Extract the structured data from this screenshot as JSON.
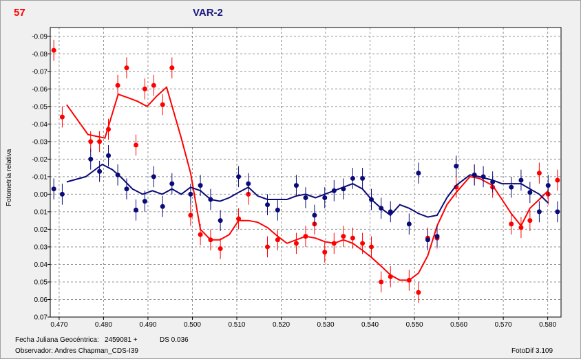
{
  "header": {
    "number": "57",
    "title": "VAR-2"
  },
  "footer": {
    "date_label": "Fecha Juliana Geocéntrica:",
    "date_value": "2459081 +",
    "ds": "DS 0.036",
    "observer": "Observador: Andres Chapman_CDS-I39",
    "software": "FotoDif 3.109"
  },
  "colors": {
    "red": "#ff0000",
    "blue": "#0a0a78",
    "grid": "#909090",
    "plot_bg": "#ffffff"
  },
  "chart_data": {
    "type": "scatter",
    "ylabel": "Fotometría relativa",
    "xlim": [
      0.468,
      0.583
    ],
    "ylim": [
      -0.095,
      0.07
    ],
    "y_inverted": true,
    "x_ticks": [
      "0.470",
      "0.480",
      "0.490",
      "0.500",
      "0.510",
      "0.520",
      "0.530",
      "0.540",
      "0.550",
      "0.560",
      "0.570",
      "0.580"
    ],
    "y_ticks": [
      "-0.09",
      "-0.08",
      "-0.07",
      "-0.06",
      "-0.05",
      "-0.04",
      "-0.03",
      "-0.02",
      "-0.01",
      "0.00",
      "0.01",
      "0.02",
      "0.03",
      "0.04",
      "0.05",
      "0.06",
      "0.07"
    ],
    "grid": true,
    "series": [
      {
        "color": "red",
        "error": 0.006,
        "points": [
          [
            0.4688,
            -0.082
          ],
          [
            0.4707,
            -0.044
          ],
          [
            0.4771,
            -0.03
          ],
          [
            0.4791,
            -0.03
          ],
          [
            0.4811,
            -0.037
          ],
          [
            0.4832,
            -0.062
          ],
          [
            0.4852,
            -0.072
          ],
          [
            0.4873,
            -0.028
          ],
          [
            0.4893,
            -0.06
          ],
          [
            0.4913,
            -0.062
          ],
          [
            0.4933,
            -0.051
          ],
          [
            0.4954,
            -0.072
          ],
          [
            0.4996,
            0.012
          ],
          [
            0.5018,
            0.023
          ],
          [
            0.5041,
            0.026
          ],
          [
            0.5063,
            0.031
          ],
          [
            0.5104,
            0.014
          ],
          [
            0.5126,
            0.0
          ],
          [
            0.5169,
            0.03
          ],
          [
            0.5192,
            0.026
          ],
          [
            0.5234,
            0.028
          ],
          [
            0.5255,
            0.024
          ],
          [
            0.5275,
            0.017
          ],
          [
            0.5298,
            0.033
          ],
          [
            0.5319,
            0.028
          ],
          [
            0.534,
            0.024
          ],
          [
            0.5361,
            0.025
          ],
          [
            0.5383,
            0.028
          ],
          [
            0.5403,
            0.03
          ],
          [
            0.5425,
            0.05
          ],
          [
            0.5446,
            0.047
          ],
          [
            0.5488,
            0.049
          ],
          [
            0.5509,
            0.056
          ],
          [
            0.553,
            0.025
          ],
          [
            0.5551,
            0.025
          ],
          [
            0.5594,
            -0.004
          ],
          [
            0.5635,
            -0.011
          ],
          [
            0.5676,
            -0.004
          ],
          [
            0.5718,
            0.017
          ],
          [
            0.574,
            0.019
          ],
          [
            0.576,
            0.015
          ],
          [
            0.5781,
            -0.012
          ],
          [
            0.5801,
            0.0
          ],
          [
            0.5822,
            -0.008
          ]
        ],
        "trend": [
          [
            0.4717,
            -0.051
          ],
          [
            0.4765,
            -0.034
          ],
          [
            0.4803,
            -0.032
          ],
          [
            0.4833,
            -0.057
          ],
          [
            0.4855,
            -0.055
          ],
          [
            0.4876,
            -0.053
          ],
          [
            0.4898,
            -0.05
          ],
          [
            0.492,
            -0.056
          ],
          [
            0.4942,
            -0.061
          ],
          [
            0.4975,
            -0.032
          ],
          [
            0.4996,
            -0.012
          ],
          [
            0.5018,
            0.02
          ],
          [
            0.5041,
            0.026
          ],
          [
            0.5062,
            0.026
          ],
          [
            0.5083,
            0.023
          ],
          [
            0.5104,
            0.015
          ],
          [
            0.5126,
            0.015
          ],
          [
            0.5147,
            0.016
          ],
          [
            0.5169,
            0.019
          ],
          [
            0.5192,
            0.024
          ],
          [
            0.5213,
            0.028
          ],
          [
            0.5234,
            0.026
          ],
          [
            0.5255,
            0.024
          ],
          [
            0.5277,
            0.025
          ],
          [
            0.5298,
            0.027
          ],
          [
            0.5319,
            0.028
          ],
          [
            0.534,
            0.026
          ],
          [
            0.5361,
            0.028
          ],
          [
            0.5383,
            0.032
          ],
          [
            0.5403,
            0.036
          ],
          [
            0.5425,
            0.041
          ],
          [
            0.5446,
            0.046
          ],
          [
            0.5467,
            0.049
          ],
          [
            0.5488,
            0.049
          ],
          [
            0.5509,
            0.045
          ],
          [
            0.553,
            0.035
          ],
          [
            0.5551,
            0.018
          ],
          [
            0.5573,
            0.006
          ],
          [
            0.5594,
            -0.001
          ],
          [
            0.5625,
            -0.01
          ],
          [
            0.5646,
            -0.009
          ],
          [
            0.5676,
            -0.005
          ],
          [
            0.5697,
            0.003
          ],
          [
            0.5718,
            0.011
          ],
          [
            0.574,
            0.018
          ],
          [
            0.576,
            0.008
          ],
          [
            0.5781,
            0.003
          ],
          [
            0.5801,
            -0.002
          ]
        ]
      },
      {
        "color": "blue",
        "error": 0.006,
        "points": [
          [
            0.4688,
            -0.003
          ],
          [
            0.4707,
            0.0
          ],
          [
            0.4771,
            -0.02
          ],
          [
            0.4791,
            -0.013
          ],
          [
            0.4811,
            -0.022
          ],
          [
            0.4832,
            -0.011
          ],
          [
            0.4852,
            -0.003
          ],
          [
            0.4873,
            0.009
          ],
          [
            0.4893,
            0.004
          ],
          [
            0.4913,
            -0.01
          ],
          [
            0.4933,
            0.007
          ],
          [
            0.4954,
            -0.006
          ],
          [
            0.4996,
            0.0
          ],
          [
            0.5018,
            -0.005
          ],
          [
            0.5041,
            0.003
          ],
          [
            0.5063,
            0.015
          ],
          [
            0.5104,
            -0.01
          ],
          [
            0.5126,
            -0.006
          ],
          [
            0.5169,
            0.006
          ],
          [
            0.5192,
            0.009
          ],
          [
            0.5234,
            -0.005
          ],
          [
            0.5255,
            0.002
          ],
          [
            0.5275,
            0.012
          ],
          [
            0.5298,
            0.002
          ],
          [
            0.5319,
            -0.002
          ],
          [
            0.534,
            -0.003
          ],
          [
            0.5361,
            -0.009
          ],
          [
            0.5383,
            -0.009
          ],
          [
            0.5403,
            0.003
          ],
          [
            0.5425,
            0.008
          ],
          [
            0.5446,
            0.01
          ],
          [
            0.5488,
            0.017
          ],
          [
            0.5509,
            -0.012
          ],
          [
            0.553,
            0.026
          ],
          [
            0.5551,
            0.024
          ],
          [
            0.5594,
            -0.016
          ],
          [
            0.5635,
            -0.011
          ],
          [
            0.5655,
            -0.01
          ],
          [
            0.5676,
            -0.007
          ],
          [
            0.5718,
            -0.004
          ],
          [
            0.574,
            -0.008
          ],
          [
            0.576,
            -0.001
          ],
          [
            0.5781,
            0.01
          ],
          [
            0.5801,
            -0.005
          ],
          [
            0.5822,
            0.01
          ]
        ],
        "trend": [
          [
            0.4717,
            -0.007
          ],
          [
            0.476,
            -0.01
          ],
          [
            0.4797,
            -0.017
          ],
          [
            0.482,
            -0.014
          ],
          [
            0.4842,
            -0.009
          ],
          [
            0.4865,
            -0.003
          ],
          [
            0.4888,
            0.0
          ],
          [
            0.491,
            -0.002
          ],
          [
            0.4932,
            0.0
          ],
          [
            0.4954,
            -0.003
          ],
          [
            0.4975,
            0.0
          ],
          [
            0.4996,
            -0.004
          ],
          [
            0.5018,
            -0.002
          ],
          [
            0.5041,
            0.003
          ],
          [
            0.5062,
            0.004
          ],
          [
            0.5083,
            0.002
          ],
          [
            0.5104,
            -0.001
          ],
          [
            0.5126,
            -0.004
          ],
          [
            0.5147,
            0.001
          ],
          [
            0.5169,
            0.003
          ],
          [
            0.5192,
            0.003
          ],
          [
            0.5213,
            0.003
          ],
          [
            0.5234,
            0.001
          ],
          [
            0.5255,
            0.0
          ],
          [
            0.5277,
            0.002
          ],
          [
            0.5298,
            0.0
          ],
          [
            0.5319,
            -0.002
          ],
          [
            0.534,
            -0.004
          ],
          [
            0.5361,
            -0.006
          ],
          [
            0.5383,
            -0.003
          ],
          [
            0.5403,
            0.003
          ],
          [
            0.5425,
            0.008
          ],
          [
            0.5446,
            0.012
          ],
          [
            0.5467,
            0.006
          ],
          [
            0.5488,
            0.008
          ],
          [
            0.5509,
            0.011
          ],
          [
            0.553,
            0.013
          ],
          [
            0.5551,
            0.012
          ],
          [
            0.5573,
            0.002
          ],
          [
            0.5594,
            -0.005
          ],
          [
            0.5625,
            -0.011
          ],
          [
            0.5646,
            -0.01
          ],
          [
            0.5676,
            -0.008
          ],
          [
            0.5697,
            -0.006
          ],
          [
            0.5718,
            -0.006
          ],
          [
            0.574,
            -0.006
          ],
          [
            0.576,
            -0.003
          ],
          [
            0.5781,
            0.0
          ],
          [
            0.5801,
            0.005
          ]
        ]
      }
    ]
  }
}
